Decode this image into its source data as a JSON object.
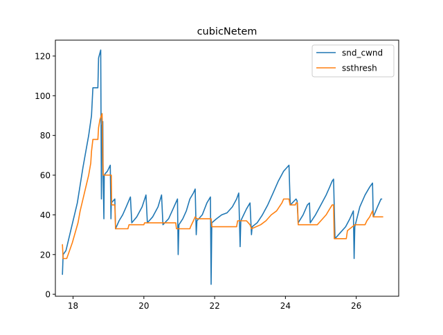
{
  "chart_data": {
    "type": "line",
    "title": "cubicNetem",
    "xlabel": "",
    "ylabel": "",
    "xlim": [
      17.5,
      27.2
    ],
    "ylim": [
      -1,
      128
    ],
    "xticks": [
      18,
      20,
      22,
      24,
      26
    ],
    "yticks": [
      0,
      20,
      40,
      60,
      80,
      100,
      120
    ],
    "grid": false,
    "legend_position": "top-right",
    "series": [
      {
        "name": "snd_cwnd",
        "color": "#1f77b4",
        "points": [
          [
            17.7,
            10
          ],
          [
            17.72,
            20
          ],
          [
            17.8,
            22
          ],
          [
            17.88,
            28
          ],
          [
            17.96,
            34
          ],
          [
            18.04,
            40
          ],
          [
            18.12,
            46
          ],
          [
            18.2,
            55
          ],
          [
            18.28,
            64
          ],
          [
            18.36,
            72
          ],
          [
            18.44,
            80
          ],
          [
            18.52,
            90
          ],
          [
            18.56,
            104
          ],
          [
            18.7,
            104
          ],
          [
            18.72,
            119
          ],
          [
            18.78,
            123
          ],
          [
            18.8,
            48
          ],
          [
            18.82,
            85
          ],
          [
            18.84,
            87
          ],
          [
            18.85,
            60
          ],
          [
            18.87,
            38
          ],
          [
            18.88,
            60
          ],
          [
            18.92,
            61
          ],
          [
            18.97,
            62
          ],
          [
            19.05,
            65
          ],
          [
            19.07,
            38
          ],
          [
            19.08,
            46
          ],
          [
            19.18,
            48
          ],
          [
            19.2,
            33
          ],
          [
            19.3,
            37
          ],
          [
            19.4,
            40
          ],
          [
            19.5,
            44
          ],
          [
            19.62,
            49
          ],
          [
            19.66,
            36
          ],
          [
            19.8,
            39
          ],
          [
            19.95,
            44
          ],
          [
            20.06,
            50
          ],
          [
            20.1,
            36
          ],
          [
            20.25,
            39
          ],
          [
            20.4,
            44
          ],
          [
            20.5,
            50
          ],
          [
            20.54,
            35
          ],
          [
            20.7,
            38
          ],
          [
            20.85,
            44
          ],
          [
            20.95,
            48
          ],
          [
            20.97,
            20
          ],
          [
            20.99,
            35
          ],
          [
            21.1,
            38
          ],
          [
            21.2,
            42
          ],
          [
            21.3,
            48
          ],
          [
            21.4,
            51
          ],
          [
            21.45,
            53
          ],
          [
            21.48,
            30
          ],
          [
            21.5,
            37
          ],
          [
            21.65,
            40
          ],
          [
            21.78,
            46
          ],
          [
            21.88,
            49
          ],
          [
            21.9,
            5
          ],
          [
            21.92,
            36
          ],
          [
            22.05,
            38
          ],
          [
            22.2,
            40
          ],
          [
            22.35,
            41
          ],
          [
            22.5,
            44
          ],
          [
            22.62,
            48
          ],
          [
            22.68,
            51
          ],
          [
            22.72,
            24
          ],
          [
            22.74,
            37
          ],
          [
            22.9,
            43
          ],
          [
            23.0,
            46
          ],
          [
            23.04,
            30
          ],
          [
            23.06,
            34
          ],
          [
            23.2,
            36
          ],
          [
            23.35,
            40
          ],
          [
            23.5,
            45
          ],
          [
            23.65,
            51
          ],
          [
            23.8,
            57
          ],
          [
            23.95,
            62
          ],
          [
            24.05,
            64
          ],
          [
            24.1,
            65
          ],
          [
            24.13,
            48
          ],
          [
            24.14,
            45
          ],
          [
            24.3,
            48
          ],
          [
            24.33,
            47
          ],
          [
            24.36,
            36
          ],
          [
            24.5,
            40
          ],
          [
            24.62,
            45
          ],
          [
            24.68,
            46
          ],
          [
            24.7,
            36
          ],
          [
            24.85,
            40
          ],
          [
            25.0,
            45
          ],
          [
            25.15,
            50
          ],
          [
            25.25,
            54
          ],
          [
            25.32,
            57
          ],
          [
            25.36,
            58
          ],
          [
            25.4,
            28
          ],
          [
            25.55,
            31
          ],
          [
            25.7,
            34
          ],
          [
            25.82,
            38
          ],
          [
            25.92,
            42
          ],
          [
            25.94,
            18
          ],
          [
            25.96,
            34
          ],
          [
            26.1,
            44
          ],
          [
            26.25,
            50
          ],
          [
            26.38,
            54
          ],
          [
            26.46,
            56
          ],
          [
            26.48,
            39
          ],
          [
            26.6,
            44
          ],
          [
            26.7,
            48
          ],
          [
            26.72,
            48
          ]
        ]
      },
      {
        "name": "ssthresh",
        "color": "#ff7f0e",
        "points": [
          [
            17.7,
            25
          ],
          [
            17.72,
            18
          ],
          [
            17.82,
            18
          ],
          [
            17.9,
            22
          ],
          [
            17.98,
            26
          ],
          [
            18.06,
            31
          ],
          [
            18.14,
            36
          ],
          [
            18.2,
            42
          ],
          [
            18.28,
            48
          ],
          [
            18.36,
            54
          ],
          [
            18.44,
            60
          ],
          [
            18.5,
            66
          ],
          [
            18.52,
            72
          ],
          [
            18.56,
            78
          ],
          [
            18.7,
            78
          ],
          [
            18.72,
            84
          ],
          [
            18.76,
            88
          ],
          [
            18.82,
            91
          ],
          [
            18.85,
            60
          ],
          [
            19.08,
            60
          ],
          [
            19.09,
            45
          ],
          [
            19.18,
            45
          ],
          [
            19.2,
            33
          ],
          [
            19.55,
            33
          ],
          [
            19.58,
            35
          ],
          [
            20.0,
            35
          ],
          [
            20.02,
            36
          ],
          [
            20.9,
            36
          ],
          [
            20.92,
            33
          ],
          [
            21.3,
            33
          ],
          [
            21.32,
            34
          ],
          [
            21.4,
            37
          ],
          [
            21.45,
            39
          ],
          [
            21.5,
            38
          ],
          [
            21.9,
            38
          ],
          [
            21.92,
            34
          ],
          [
            22.62,
            34
          ],
          [
            22.65,
            37
          ],
          [
            22.9,
            37
          ],
          [
            23.0,
            35
          ],
          [
            23.04,
            33
          ],
          [
            23.3,
            35
          ],
          [
            23.45,
            37
          ],
          [
            23.6,
            40
          ],
          [
            23.75,
            42
          ],
          [
            23.9,
            46
          ],
          [
            23.95,
            48
          ],
          [
            24.1,
            48
          ],
          [
            24.13,
            45
          ],
          [
            24.28,
            45
          ],
          [
            24.3,
            46
          ],
          [
            24.34,
            46
          ],
          [
            24.36,
            35
          ],
          [
            24.9,
            35
          ],
          [
            25.0,
            37
          ],
          [
            25.15,
            40
          ],
          [
            25.25,
            43
          ],
          [
            25.32,
            45
          ],
          [
            25.36,
            45
          ],
          [
            25.38,
            28
          ],
          [
            25.72,
            28
          ],
          [
            25.75,
            32
          ],
          [
            25.82,
            33
          ],
          [
            25.96,
            35
          ],
          [
            26.25,
            35
          ],
          [
            26.3,
            37
          ],
          [
            26.38,
            39
          ],
          [
            26.46,
            42
          ],
          [
            26.48,
            39
          ],
          [
            26.75,
            39
          ]
        ]
      }
    ]
  }
}
